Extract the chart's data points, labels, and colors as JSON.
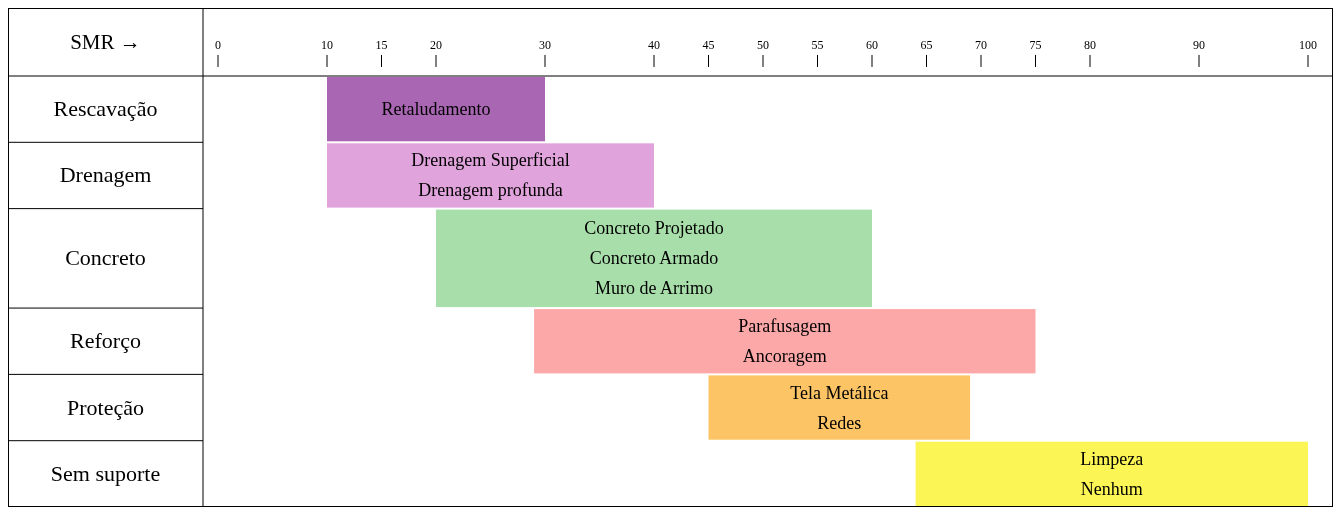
{
  "chart_data": {
    "type": "bar",
    "orientation": "horizontal",
    "xlabel": "SMR →",
    "categories": [
      "Rescavação",
      "Drenagem",
      "Concreto",
      "Reforço",
      "Proteção",
      "Sem suporte"
    ],
    "base": [
      10,
      10,
      20,
      29,
      45,
      64
    ],
    "values": [
      20,
      30,
      40,
      46,
      24,
      36
    ],
    "colors": [
      "#a967b3",
      "#e0a3dc",
      "#a8deaa",
      "#fda8a8",
      "#fdc466",
      "#fbf556"
    ],
    "xlim": [
      0,
      100
    ],
    "xticks": [
      0,
      10,
      15,
      20,
      30,
      40,
      45,
      50,
      55,
      60,
      65,
      70,
      75,
      80,
      90,
      100
    ],
    "annotations": [
      "Retaludamento",
      "Drenagem Superficial\nDrenagem profunda",
      "Concreto Projetado\nConcreto Armado\nMuro de Arrimo",
      "Parafusagem\nAncoragem",
      "Tela Metálica\nRedes",
      "Limpeza\nNenhum"
    ]
  }
}
